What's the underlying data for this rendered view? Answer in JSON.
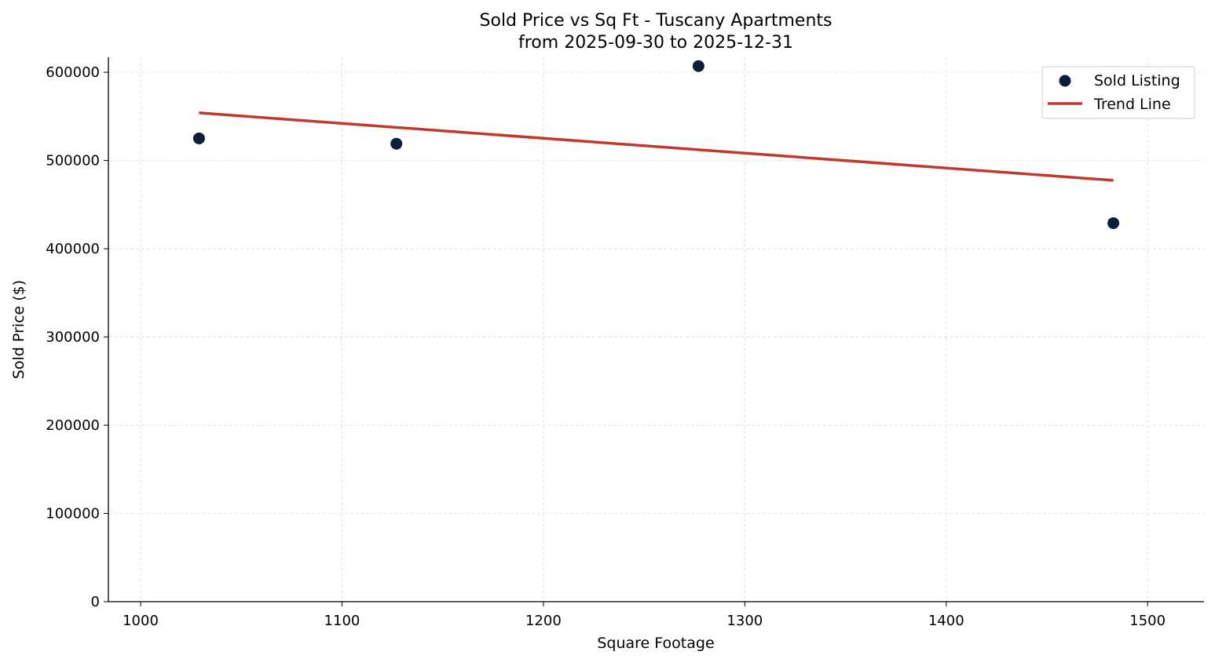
{
  "chart_data": {
    "type": "scatter",
    "title": "Sold Price vs Sq Ft - Tuscany Apartments",
    "subtitle": "from 2025-09-30 to 2025-12-31",
    "xlabel": "Square Footage",
    "ylabel": "Sold Price ($)",
    "xlim": [
      984,
      1528
    ],
    "ylim": [
      0,
      617000
    ],
    "xticks": [
      1000,
      1100,
      1200,
      1300,
      1400,
      1500
    ],
    "yticks": [
      0,
      100000,
      200000,
      300000,
      400000,
      500000,
      600000
    ],
    "grid": true,
    "legend_position": "top-right",
    "series": [
      {
        "name": "Sold Listing",
        "kind": "scatter",
        "color": "#0b1f3a",
        "x": [
          1029,
          1127,
          1277,
          1483
        ],
        "y": [
          525000,
          519000,
          607000,
          429000
        ]
      },
      {
        "name": "Trend Line",
        "kind": "line",
        "color": "#c0392b",
        "x": [
          1029,
          1483
        ],
        "y": [
          554000,
          477500
        ]
      }
    ]
  }
}
